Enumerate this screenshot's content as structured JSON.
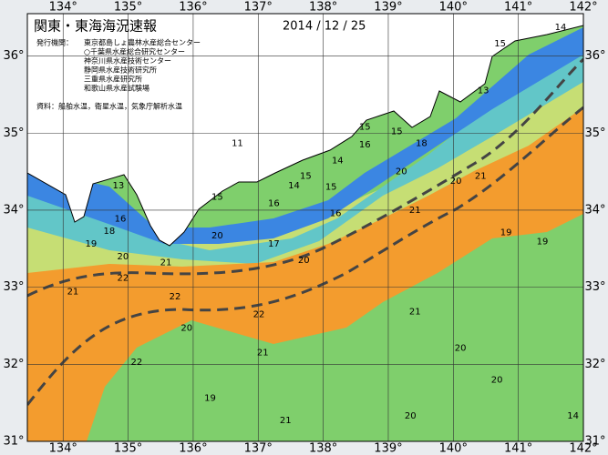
{
  "header": {
    "title": "関東・東海海況速報",
    "date": "2014 / 12 / 25",
    "publisher_label": "発行機関：",
    "publishers": [
      "東京都島しょ農林水産総合センター",
      "○千葉県水産総合研究センター",
      "神奈川県水産技術センター",
      "静岡県水産技術研究所",
      "三重県水産研究所",
      "和歌山県水産試験場"
    ],
    "source": "資料：船舶水温，衛星水温，気象庁解析水温"
  },
  "map": {
    "lon_range": [
      133.45,
      142
    ],
    "lat_range": [
      31,
      36.55
    ],
    "lon_ticks": [
      {
        "value": 134,
        "label": "134°"
      },
      {
        "value": 135,
        "label": "135°"
      },
      {
        "value": 136,
        "label": "136°"
      },
      {
        "value": 137,
        "label": "137°"
      },
      {
        "value": 138,
        "label": "138°"
      },
      {
        "value": 139,
        "label": "139°"
      },
      {
        "value": 140,
        "label": "140°"
      },
      {
        "value": 141,
        "label": "141°"
      },
      {
        "value": 142,
        "label": "142°"
      }
    ],
    "lat_ticks": [
      {
        "value": 31,
        "label": "31°"
      },
      {
        "value": 32,
        "label": "32°"
      },
      {
        "value": 33,
        "label": "33°"
      },
      {
        "value": 34,
        "label": "34°"
      },
      {
        "value": 35,
        "label": "35°"
      },
      {
        "value": 36,
        "label": "36°"
      }
    ],
    "contour_labels": [
      {
        "value": 15,
        "lon": 140.72,
        "lat": 36.16
      },
      {
        "value": 14,
        "lon": 141.65,
        "lat": 36.37
      },
      {
        "value": 13,
        "lon": 140.46,
        "lat": 35.55
      },
      {
        "value": 15,
        "lon": 138.64,
        "lat": 35.08
      },
      {
        "value": 16,
        "lon": 138.64,
        "lat": 34.85
      },
      {
        "value": 15,
        "lon": 139.13,
        "lat": 35.02
      },
      {
        "value": 18,
        "lon": 139.51,
        "lat": 34.87
      },
      {
        "value": 14,
        "lon": 138.22,
        "lat": 34.64
      },
      {
        "value": 15,
        "lon": 137.73,
        "lat": 34.44
      },
      {
        "value": 11,
        "lon": 136.68,
        "lat": 34.87
      },
      {
        "value": 14,
        "lon": 137.55,
        "lat": 34.32
      },
      {
        "value": 15,
        "lon": 138.12,
        "lat": 34.3
      },
      {
        "value": 16,
        "lon": 137.24,
        "lat": 34.09
      },
      {
        "value": 16,
        "lon": 138.19,
        "lat": 33.96
      },
      {
        "value": 15,
        "lon": 136.37,
        "lat": 34.17
      },
      {
        "value": 20,
        "lon": 139.2,
        "lat": 34.5
      },
      {
        "value": 21,
        "lon": 139.41,
        "lat": 34.0
      },
      {
        "value": 20,
        "lon": 140.04,
        "lat": 34.38
      },
      {
        "value": 21,
        "lon": 140.42,
        "lat": 34.44
      },
      {
        "value": 17,
        "lon": 137.24,
        "lat": 33.56
      },
      {
        "value": 20,
        "lon": 136.37,
        "lat": 33.67
      },
      {
        "value": 16,
        "lon": 134.88,
        "lat": 33.89
      },
      {
        "value": 13,
        "lon": 134.85,
        "lat": 34.32
      },
      {
        "value": 18,
        "lon": 134.71,
        "lat": 33.73
      },
      {
        "value": 19,
        "lon": 134.43,
        "lat": 33.56
      },
      {
        "value": 20,
        "lon": 134.92,
        "lat": 33.4
      },
      {
        "value": 21,
        "lon": 135.58,
        "lat": 33.32
      },
      {
        "value": 21,
        "lon": 134.15,
        "lat": 32.94
      },
      {
        "value": 22,
        "lon": 134.92,
        "lat": 33.12
      },
      {
        "value": 22,
        "lon": 135.72,
        "lat": 32.88
      },
      {
        "value": 22,
        "lon": 137.01,
        "lat": 32.65
      },
      {
        "value": 20,
        "lon": 137.7,
        "lat": 33.35
      },
      {
        "value": 21,
        "lon": 139.41,
        "lat": 32.68
      },
      {
        "value": 20,
        "lon": 140.11,
        "lat": 32.21
      },
      {
        "value": 20,
        "lon": 140.67,
        "lat": 31.8
      },
      {
        "value": 19,
        "lon": 140.81,
        "lat": 33.71
      },
      {
        "value": 19,
        "lon": 141.37,
        "lat": 33.59
      },
      {
        "value": 19,
        "lon": 136.26,
        "lat": 31.56
      },
      {
        "value": 21,
        "lon": 137.42,
        "lat": 31.27
      },
      {
        "value": 20,
        "lon": 139.34,
        "lat": 31.33
      },
      {
        "value": 14,
        "lon": 141.84,
        "lat": 31.33
      },
      {
        "value": 22,
        "lon": 135.13,
        "lat": 32.03
      },
      {
        "value": 20,
        "lon": 135.9,
        "lat": 32.47
      },
      {
        "value": 21,
        "lon": 137.07,
        "lat": 32.15
      }
    ]
  }
}
